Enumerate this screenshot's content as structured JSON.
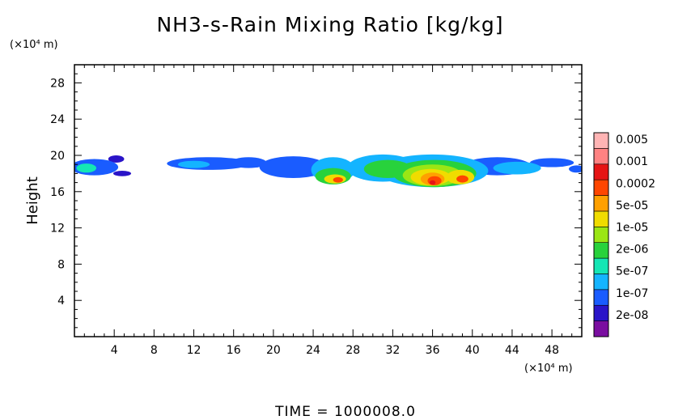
{
  "chart_data": {
    "type": "heatmap",
    "title": "NH3-s-Rain Mixing Ratio [kg/kg]",
    "ylabel": "Height",
    "xlabel": "",
    "x_unit": "(×10⁴ m)",
    "y_unit": "(×10⁴ m)",
    "xlim": [
      0,
      51
    ],
    "ylim": [
      0,
      30
    ],
    "x_ticks": [
      4,
      8,
      12,
      16,
      20,
      24,
      28,
      32,
      36,
      40,
      44,
      48
    ],
    "y_ticks": [
      4,
      8,
      12,
      16,
      20,
      24,
      28
    ],
    "x_tick_labels": [
      "4",
      "8",
      "12",
      "16",
      "20",
      "24",
      "28",
      "32",
      "36",
      "40",
      "44",
      "48"
    ],
    "y_tick_labels": [
      "4",
      "8",
      "12",
      "16",
      "20",
      "24",
      "28"
    ],
    "colorbar": {
      "labels": [
        "0.005",
        "0.001",
        "0.0002",
        "5e-05",
        "1e-05",
        "2e-06",
        "5e-07",
        "1e-07",
        "2e-08"
      ],
      "colors": [
        "#7a0ea0",
        "#2a14c8",
        "#1a5cff",
        "#14b4ff",
        "#14e6b4",
        "#28d23c",
        "#9be614",
        "#f0dc00",
        "#ffa000",
        "#ff4600",
        "#e61414",
        "#ff8282",
        "#ffb4b4"
      ]
    },
    "field": {
      "description_levels": "0 = none, 1..12 = colorbar level index from lowest",
      "blobs": [
        {
          "x": 2.0,
          "y": 18.7,
          "rx": 2.4,
          "ry": 0.9,
          "level": 2
        },
        {
          "x": 1.2,
          "y": 18.6,
          "rx": 1.0,
          "ry": 0.5,
          "level": 4
        },
        {
          "x": 4.2,
          "y": 19.6,
          "rx": 0.8,
          "ry": 0.4,
          "level": 1
        },
        {
          "x": 4.8,
          "y": 18.0,
          "rx": 0.9,
          "ry": 0.3,
          "level": 1
        },
        {
          "x": 13.5,
          "y": 19.1,
          "rx": 4.2,
          "ry": 0.7,
          "level": 2
        },
        {
          "x": 12.0,
          "y": 19.0,
          "rx": 1.6,
          "ry": 0.4,
          "level": 3
        },
        {
          "x": 17.5,
          "y": 19.2,
          "rx": 1.8,
          "ry": 0.6,
          "level": 2
        },
        {
          "x": 22.0,
          "y": 18.7,
          "rx": 3.4,
          "ry": 1.2,
          "level": 2
        },
        {
          "x": 26.0,
          "y": 18.4,
          "rx": 2.2,
          "ry": 1.4,
          "level": 3
        },
        {
          "x": 26.0,
          "y": 17.7,
          "rx": 1.8,
          "ry": 0.9,
          "level": 5
        },
        {
          "x": 26.2,
          "y": 17.4,
          "rx": 1.1,
          "ry": 0.5,
          "level": 7
        },
        {
          "x": 26.5,
          "y": 17.3,
          "rx": 0.5,
          "ry": 0.3,
          "level": 9
        },
        {
          "x": 31.0,
          "y": 18.6,
          "rx": 3.6,
          "ry": 1.5,
          "level": 3
        },
        {
          "x": 31.5,
          "y": 18.5,
          "rx": 2.4,
          "ry": 1.0,
          "level": 5
        },
        {
          "x": 36.0,
          "y": 18.3,
          "rx": 5.6,
          "ry": 1.8,
          "level": 3
        },
        {
          "x": 36.2,
          "y": 18.0,
          "rx": 4.2,
          "ry": 1.5,
          "level": 5
        },
        {
          "x": 36.0,
          "y": 17.8,
          "rx": 3.0,
          "ry": 1.2,
          "level": 6
        },
        {
          "x": 35.8,
          "y": 17.6,
          "rx": 2.0,
          "ry": 0.9,
          "level": 7
        },
        {
          "x": 36.0,
          "y": 17.4,
          "rx": 1.2,
          "ry": 0.7,
          "level": 8
        },
        {
          "x": 36.2,
          "y": 17.2,
          "rx": 0.7,
          "ry": 0.5,
          "level": 9
        },
        {
          "x": 36.0,
          "y": 17.0,
          "rx": 0.3,
          "ry": 0.25,
          "level": 10
        },
        {
          "x": 38.8,
          "y": 17.6,
          "rx": 1.4,
          "ry": 0.8,
          "level": 7
        },
        {
          "x": 39.0,
          "y": 17.4,
          "rx": 0.6,
          "ry": 0.4,
          "level": 9
        },
        {
          "x": 42.5,
          "y": 18.8,
          "rx": 3.4,
          "ry": 1.0,
          "level": 2
        },
        {
          "x": 44.5,
          "y": 18.6,
          "rx": 2.4,
          "ry": 0.7,
          "level": 3
        },
        {
          "x": 48.0,
          "y": 19.2,
          "rx": 2.2,
          "ry": 0.5,
          "level": 2
        },
        {
          "x": 50.5,
          "y": 18.5,
          "rx": 0.8,
          "ry": 0.4,
          "level": 2
        }
      ]
    }
  },
  "footer": {
    "time_label": "TIME  =  1000008.0"
  }
}
